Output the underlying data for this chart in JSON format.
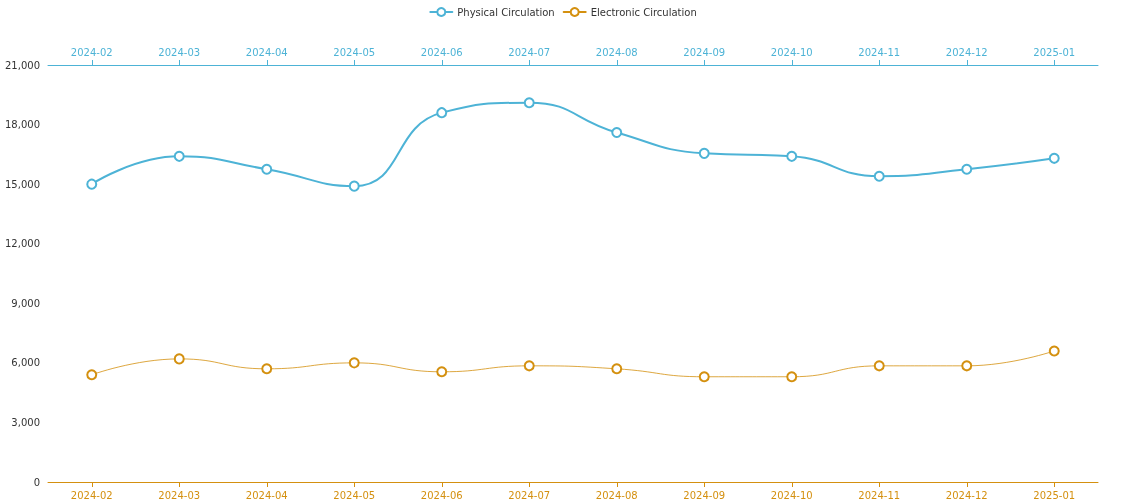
{
  "chart_data": {
    "type": "line",
    "categories": [
      "2024-02",
      "2024-03",
      "2024-04",
      "2024-05",
      "2024-06",
      "2024-07",
      "2024-08",
      "2024-09",
      "2024-10",
      "2024-11",
      "2024-12",
      "2025-01"
    ],
    "series": [
      {
        "name": "Physical Circulation",
        "color": "#4db3d6",
        "values": [
          15000,
          16400,
          15750,
          14900,
          18600,
          19100,
          17600,
          16550,
          16400,
          15400,
          15750,
          16300
        ]
      },
      {
        "name": "Electronic Circulation",
        "color": "#d4900f",
        "values": [
          5400,
          6200,
          5700,
          6000,
          5550,
          5850,
          5700,
          5300,
          5300,
          5850,
          5850,
          6600
        ]
      }
    ],
    "ylim": [
      0,
      21000
    ],
    "yticks": [
      {
        "value": 0,
        "label": "0"
      },
      {
        "value": 3000,
        "label": "3,000"
      },
      {
        "value": 6000,
        "label": "6,000"
      },
      {
        "value": 9000,
        "label": "9,000"
      },
      {
        "value": 12000,
        "label": "12,000"
      },
      {
        "value": 15000,
        "label": "15,000"
      },
      {
        "value": 18000,
        "label": "18,000"
      },
      {
        "value": 21000,
        "label": "21,000"
      }
    ],
    "grid": false,
    "legend": "top",
    "marker": "circle",
    "line_style": "solid"
  }
}
